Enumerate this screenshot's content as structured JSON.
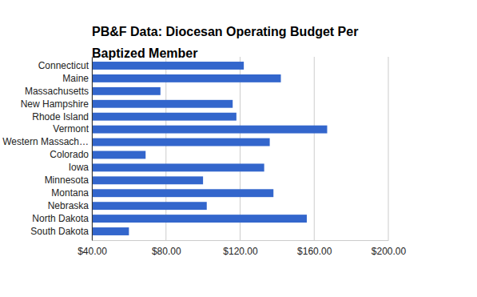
{
  "chart_data": {
    "type": "bar",
    "orientation": "horizontal",
    "title": "PB&F Data: Diocesan Operating Budget Per Baptized Member",
    "categories": [
      "Connecticut",
      "Maine",
      "Massachusetts",
      "New Hampshire",
      "Rhode Island",
      "Vermont",
      "Western Massach…",
      "Colorado",
      "Iowa",
      "Minnesota",
      "Montana",
      "Nebraska",
      "North Dakota",
      "South Dakota"
    ],
    "values": [
      122,
      142,
      77,
      116,
      118,
      167,
      136,
      69,
      133,
      100,
      138,
      102,
      156,
      60
    ],
    "color": "#3366cc",
    "xlim": [
      40,
      200
    ],
    "xticks": [
      {
        "value": 40,
        "label": "$40.00"
      },
      {
        "value": 80,
        "label": "$80.00"
      },
      {
        "value": 120,
        "label": "$120.00"
      },
      {
        "value": 160,
        "label": "$160.00"
      },
      {
        "value": 200,
        "label": "$200.00"
      }
    ],
    "grid": true
  }
}
